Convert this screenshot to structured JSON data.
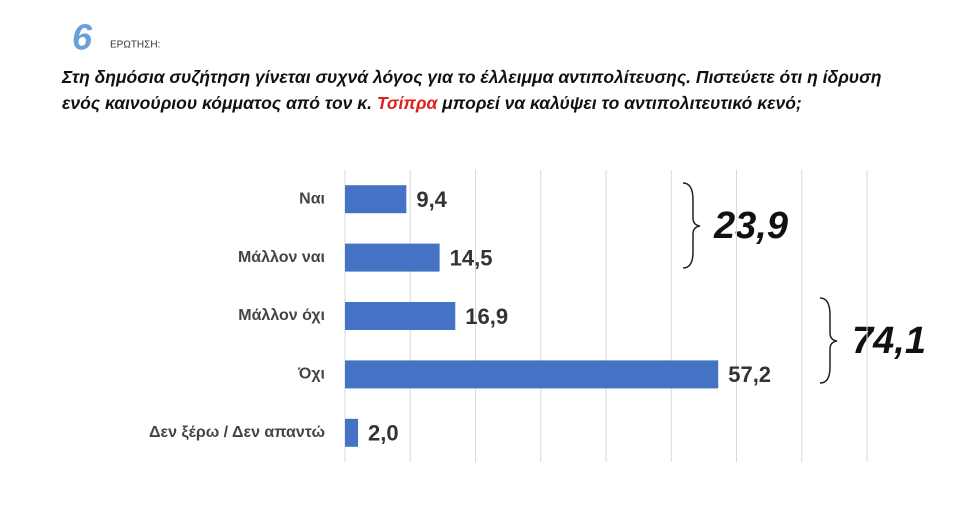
{
  "header": {
    "number": "6",
    "label": "ΕΡΩΤΗΣΗ:"
  },
  "question": [
    "Στη δημόσια συζήτηση γίνεται συχνά λόγος για το έλλειμμα αντιπολίτευσης. Πιστεύετε ότι η ίδρυση ενός καινούριου κόμματος από τον κ. ",
    "Τσίπρα",
    " μπορεί να καλύψει το αντιπολιτευτικό κενό;"
  ],
  "chart_data": {
    "type": "hbar",
    "categories": [
      "Ναι",
      "Μάλλον ναι",
      "Μάλλον όχι",
      "Όχι",
      "Δεν ξέρω / Δεν απαντώ"
    ],
    "values": [
      9.4,
      14.5,
      16.9,
      57.2,
      2.0
    ],
    "value_labels": [
      "9,4",
      "14,5",
      "16,9",
      "57,2",
      "2,0"
    ],
    "color": "#4472c4",
    "xlim": [
      0,
      80
    ],
    "xticks": [
      0,
      10,
      20,
      30,
      40,
      50,
      60,
      70,
      80
    ],
    "grid": true,
    "annotations": [
      "23,9",
      "74,1"
    ]
  }
}
